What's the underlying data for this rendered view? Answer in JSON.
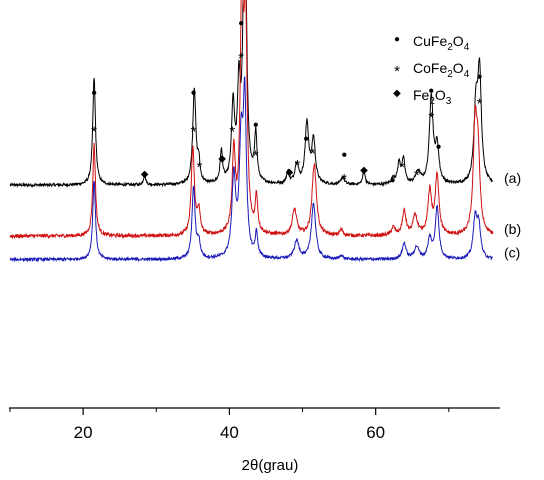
{
  "chart_data": {
    "type": "line",
    "xlabel": "2θ(grau)",
    "ylabel": "",
    "xlim": [
      10,
      77
    ],
    "ylim": [
      0,
      100
    ],
    "x_ticks": [
      20,
      40,
      60
    ],
    "x_minor_ticks": [
      10,
      30,
      50,
      70
    ],
    "grid": false,
    "legend_position": "top-right",
    "legend": [
      {
        "symbol": "●",
        "name": "CuFe",
        "sub1": "2",
        "mid": "O",
        "sub2": "4"
      },
      {
        "symbol": "*",
        "name": "CoFe",
        "sub1": "2",
        "mid": "O",
        "sub2": "4"
      },
      {
        "symbol": "◆",
        "name": "Fe",
        "sub1": "2",
        "mid": "O",
        "sub2": "3"
      }
    ],
    "series": [
      {
        "name": "(a)",
        "color": "#000000",
        "baseline": 56.0,
        "noise": 0.35,
        "peaks": [
          [
            21.5,
            27,
            0.22
          ],
          [
            28.4,
            2.5,
            0.18
          ],
          [
            35.2,
            24,
            0.25
          ],
          [
            35.8,
            5,
            0.2
          ],
          [
            38.9,
            8,
            0.2
          ],
          [
            40.5,
            19,
            0.25
          ],
          [
            41.3,
            22,
            0.25
          ],
          [
            42.1,
            80,
            0.25
          ],
          [
            43.6,
            12,
            0.2
          ],
          [
            48.0,
            3,
            0.2
          ],
          [
            49.2,
            5,
            0.3
          ],
          [
            50.6,
            15,
            0.3
          ],
          [
            51.5,
            11,
            0.3
          ],
          [
            55.5,
            2,
            0.25
          ],
          [
            58.4,
            3.5,
            0.2
          ],
          [
            62.4,
            1.5,
            0.3
          ],
          [
            63.2,
            5,
            0.25
          ],
          [
            63.8,
            6,
            0.25
          ],
          [
            65.8,
            3,
            0.4
          ],
          [
            67.6,
            22,
            0.3
          ],
          [
            68.4,
            9,
            0.3
          ],
          [
            73.7,
            18,
            0.3
          ],
          [
            74.2,
            27,
            0.3
          ]
        ]
      },
      {
        "name": "(b)",
        "color": "#d01010",
        "baseline": 43.2,
        "noise": 0.45,
        "peaks": [
          [
            21.5,
            23,
            0.22
          ],
          [
            35.0,
            22,
            0.25
          ],
          [
            35.8,
            6,
            0.25
          ],
          [
            40.6,
            20,
            0.25
          ],
          [
            41.7,
            58,
            0.25
          ],
          [
            42.2,
            52,
            0.25
          ],
          [
            43.7,
            9,
            0.2
          ],
          [
            48.9,
            6.5,
            0.35
          ],
          [
            51.6,
            18,
            0.35
          ],
          [
            55.3,
            1.5,
            0.25
          ],
          [
            62.4,
            2,
            0.3
          ],
          [
            63.9,
            6,
            0.3
          ],
          [
            65.4,
            5,
            0.35
          ],
          [
            67.4,
            11,
            0.3
          ],
          [
            68.4,
            15,
            0.3
          ],
          [
            73.6,
            26,
            0.3
          ],
          [
            74.0,
            18,
            0.3
          ]
        ]
      },
      {
        "name": "(c)",
        "color": "#1a1ab8",
        "baseline": 37.3,
        "noise": 0.35,
        "peaks": [
          [
            21.5,
            20,
            0.22
          ],
          [
            35.1,
            18,
            0.25
          ],
          [
            35.8,
            4,
            0.25
          ],
          [
            40.6,
            20,
            0.3
          ],
          [
            41.6,
            27,
            0.3
          ],
          [
            42.1,
            38,
            0.25
          ],
          [
            43.7,
            6,
            0.2
          ],
          [
            49.2,
            4.5,
            0.4
          ],
          [
            51.5,
            14,
            0.35
          ],
          [
            55.3,
            1,
            0.25
          ],
          [
            63.9,
            4,
            0.3
          ],
          [
            65.6,
            3,
            0.4
          ],
          [
            67.4,
            5,
            0.3
          ],
          [
            68.4,
            13,
            0.3
          ],
          [
            73.6,
            10,
            0.3
          ],
          [
            74.1,
            8,
            0.3
          ]
        ]
      }
    ],
    "annotations": [
      {
        "x": 21.5,
        "y": 79.5,
        "symbol": "●"
      },
      {
        "x": 21.5,
        "y": 70.5,
        "symbol": "*"
      },
      {
        "x": 28.4,
        "y": 59.0,
        "symbol": "◆"
      },
      {
        "x": 35.1,
        "y": 79.5,
        "symbol": "●"
      },
      {
        "x": 35.1,
        "y": 70.5,
        "symbol": "*"
      },
      {
        "x": 35.9,
        "y": 61.5,
        "symbol": "*"
      },
      {
        "x": 39.0,
        "y": 63.0,
        "symbol": "◆"
      },
      {
        "x": 40.4,
        "y": 70.5,
        "symbol": "*"
      },
      {
        "x": 41.6,
        "y": 97.0,
        "symbol": "●"
      },
      {
        "x": 41.6,
        "y": 89.0,
        "symbol": "*"
      },
      {
        "x": 43.6,
        "y": 71.5,
        "symbol": "●"
      },
      {
        "x": 43.6,
        "y": 64.5,
        "symbol": "*"
      },
      {
        "x": 48.2,
        "y": 59.5,
        "symbol": "◆"
      },
      {
        "x": 49.3,
        "y": 62.0,
        "symbol": "*"
      },
      {
        "x": 50.5,
        "y": 68.0,
        "symbol": "●"
      },
      {
        "x": 51.4,
        "y": 65.0,
        "symbol": "*"
      },
      {
        "x": 55.7,
        "y": 64.0,
        "symbol": "●"
      },
      {
        "x": 55.7,
        "y": 58.5,
        "symbol": "*"
      },
      {
        "x": 58.4,
        "y": 60.0,
        "symbol": "◆"
      },
      {
        "x": 62.3,
        "y": 57.5,
        "symbol": "●"
      },
      {
        "x": 63.6,
        "y": 61.5,
        "symbol": "*"
      },
      {
        "x": 65.6,
        "y": 59.5,
        "symbol": "*"
      },
      {
        "x": 67.6,
        "y": 80.0,
        "symbol": "●"
      },
      {
        "x": 67.6,
        "y": 74.0,
        "symbol": "*"
      },
      {
        "x": 68.6,
        "y": 66.0,
        "symbol": "●"
      },
      {
        "x": 74.2,
        "y": 83.5,
        "symbol": "●"
      },
      {
        "x": 74.2,
        "y": 77.5,
        "symbol": "*"
      }
    ]
  }
}
